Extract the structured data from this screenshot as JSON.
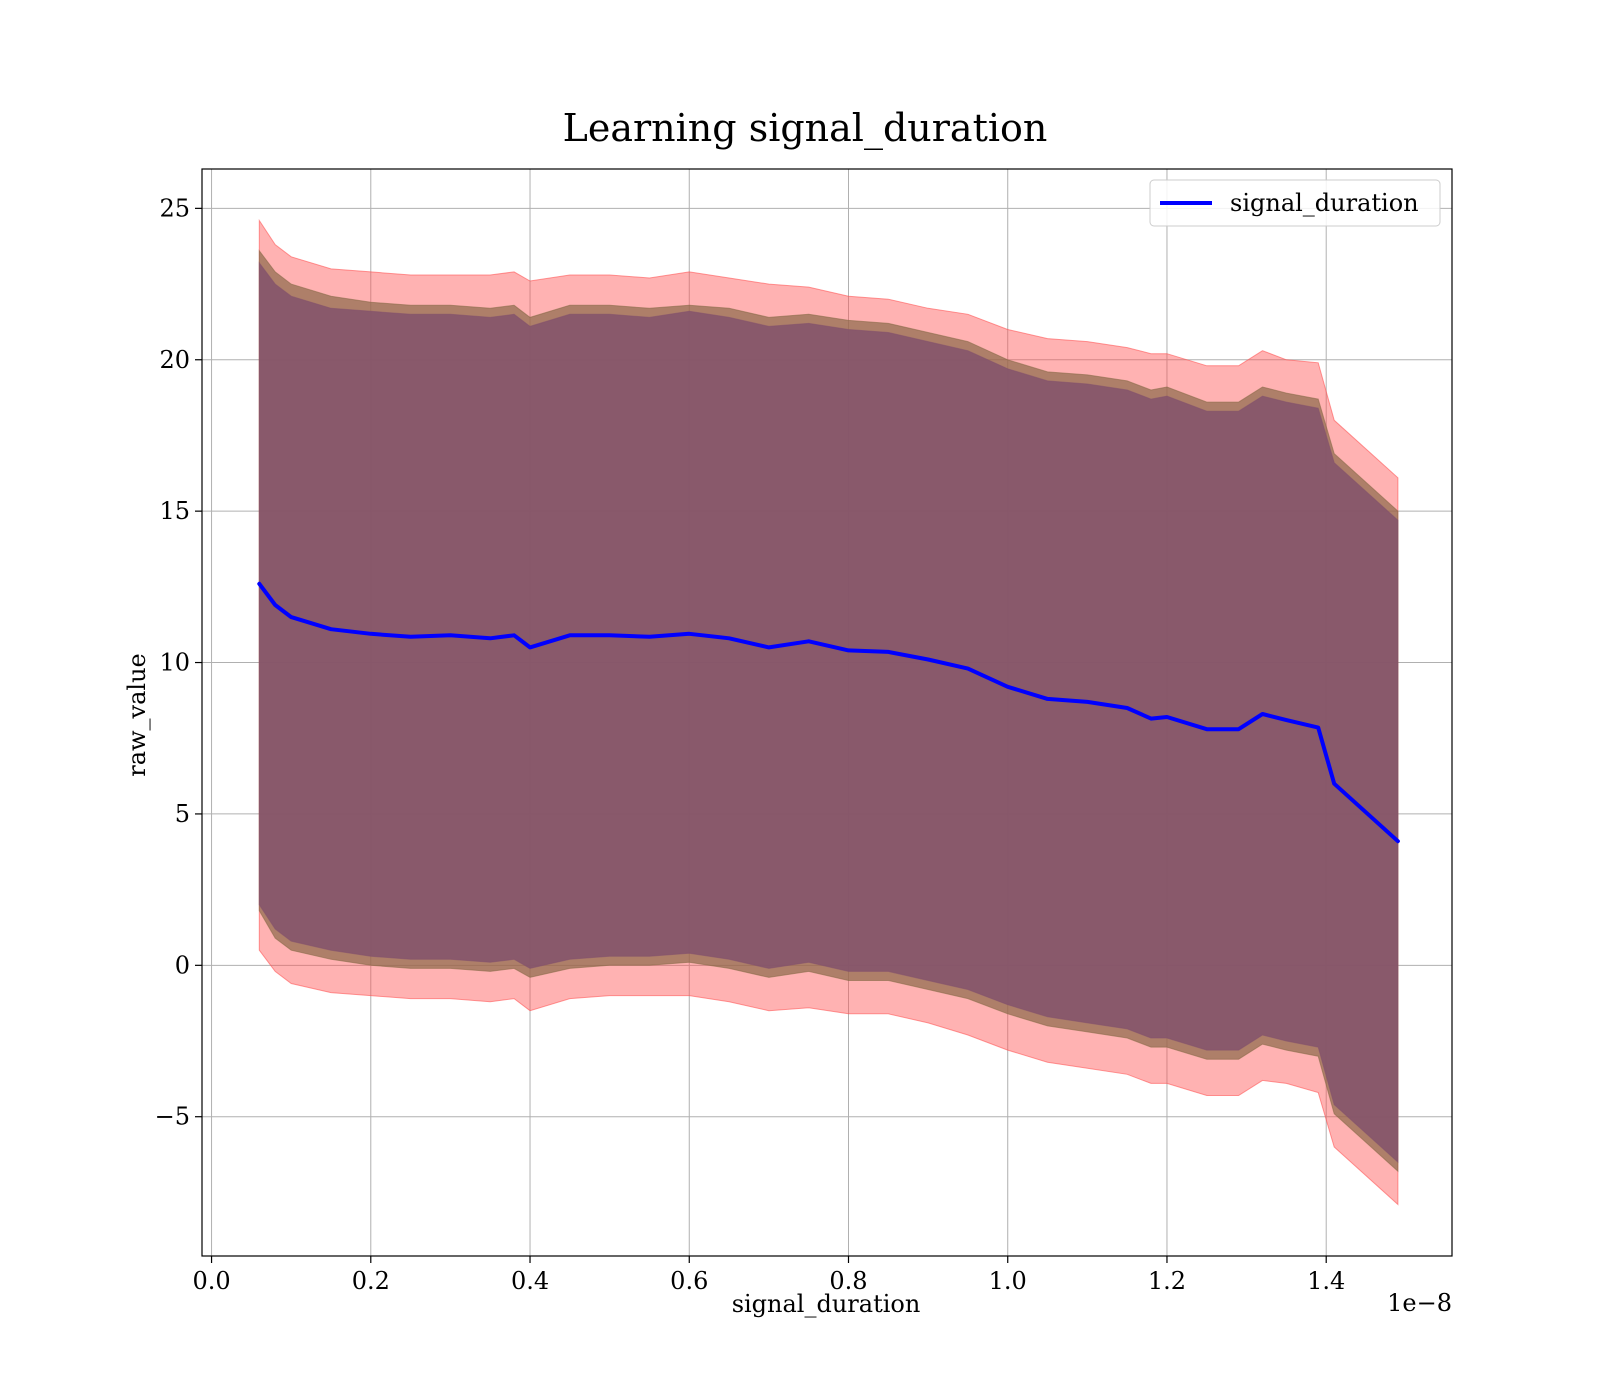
{
  "chart_data": {
    "type": "line",
    "title": "Learning signal_duration",
    "xlabel": "signal_duration",
    "ylabel": "raw_value",
    "x_offset_label": "1e−8",
    "xlim": [
      -0.012,
      1.558
    ],
    "ylim": [
      -9.6,
      26.3
    ],
    "x_ticks": [
      0.0,
      0.2,
      0.4,
      0.6,
      0.8,
      1.0,
      1.2,
      1.4
    ],
    "x_tick_labels": [
      "0.0",
      "0.2",
      "0.4",
      "0.6",
      "0.8",
      "1.0",
      "1.2",
      "1.4"
    ],
    "y_ticks": [
      -5,
      0,
      5,
      10,
      15,
      20,
      25
    ],
    "y_tick_labels": [
      "−5",
      "0",
      "5",
      "10",
      "15",
      "20",
      "25"
    ],
    "grid": true,
    "legend_position": "top-right",
    "series": [
      {
        "name": "signal_duration",
        "color": "#0000ff",
        "x": [
          0.06,
          0.08,
          0.1,
          0.15,
          0.2,
          0.25,
          0.3,
          0.35,
          0.38,
          0.4,
          0.45,
          0.5,
          0.55,
          0.6,
          0.65,
          0.7,
          0.75,
          0.8,
          0.85,
          0.9,
          0.95,
          1.0,
          1.05,
          1.1,
          1.15,
          1.18,
          1.2,
          1.25,
          1.29,
          1.32,
          1.35,
          1.39,
          1.41,
          1.49
        ],
        "y": [
          12.6,
          11.9,
          11.5,
          11.1,
          10.95,
          10.85,
          10.9,
          10.8,
          10.9,
          10.5,
          10.9,
          10.9,
          10.85,
          10.95,
          10.8,
          10.5,
          10.7,
          10.4,
          10.35,
          10.1,
          9.8,
          9.2,
          8.8,
          8.7,
          8.5,
          8.15,
          8.2,
          7.8,
          7.8,
          8.3,
          8.1,
          7.85,
          6.0,
          4.1
        ]
      }
    ],
    "bands": [
      {
        "color": "#ff5555",
        "opacity": 0.45,
        "x": [
          0.06,
          0.08,
          0.1,
          0.15,
          0.2,
          0.25,
          0.3,
          0.35,
          0.38,
          0.4,
          0.45,
          0.5,
          0.55,
          0.6,
          0.65,
          0.7,
          0.75,
          0.8,
          0.85,
          0.9,
          0.95,
          1.0,
          1.05,
          1.1,
          1.15,
          1.18,
          1.2,
          1.25,
          1.29,
          1.32,
          1.35,
          1.39,
          1.41,
          1.49
        ],
        "upper": [
          24.6,
          23.8,
          23.4,
          23.0,
          22.9,
          22.8,
          22.8,
          22.8,
          22.9,
          22.6,
          22.8,
          22.8,
          22.7,
          22.9,
          22.7,
          22.5,
          22.4,
          22.1,
          22.0,
          21.7,
          21.5,
          21.0,
          20.7,
          20.6,
          20.4,
          20.2,
          20.2,
          19.8,
          19.8,
          20.3,
          20.0,
          19.9,
          18.0,
          16.1
        ],
        "lower": [
          0.5,
          -0.2,
          -0.6,
          -0.9,
          -1.0,
          -1.1,
          -1.1,
          -1.2,
          -1.1,
          -1.5,
          -1.1,
          -1.0,
          -1.0,
          -1.0,
          -1.2,
          -1.5,
          -1.4,
          -1.6,
          -1.6,
          -1.9,
          -2.3,
          -2.8,
          -3.2,
          -3.4,
          -3.6,
          -3.9,
          -3.9,
          -4.3,
          -4.3,
          -3.8,
          -3.9,
          -4.2,
          -6.0,
          -7.9
        ]
      },
      {
        "color": "#8b6a4a",
        "opacity": 0.7,
        "x": [
          0.06,
          0.08,
          0.1,
          0.15,
          0.2,
          0.25,
          0.3,
          0.35,
          0.38,
          0.4,
          0.45,
          0.5,
          0.55,
          0.6,
          0.65,
          0.7,
          0.75,
          0.8,
          0.85,
          0.9,
          0.95,
          1.0,
          1.05,
          1.1,
          1.15,
          1.18,
          1.2,
          1.25,
          1.29,
          1.32,
          1.35,
          1.39,
          1.41,
          1.49
        ],
        "upper": [
          23.6,
          22.9,
          22.5,
          22.1,
          21.9,
          21.8,
          21.8,
          21.7,
          21.8,
          21.4,
          21.8,
          21.8,
          21.7,
          21.8,
          21.7,
          21.4,
          21.5,
          21.3,
          21.2,
          20.9,
          20.6,
          20.0,
          19.6,
          19.5,
          19.3,
          19.0,
          19.1,
          18.6,
          18.6,
          19.1,
          18.9,
          18.7,
          16.9,
          15.0
        ],
        "lower": [
          1.8,
          0.9,
          0.5,
          0.2,
          0.0,
          -0.1,
          -0.1,
          -0.2,
          -0.1,
          -0.4,
          -0.1,
          0.0,
          0.0,
          0.1,
          -0.1,
          -0.4,
          -0.2,
          -0.5,
          -0.5,
          -0.8,
          -1.1,
          -1.6,
          -2.0,
          -2.2,
          -2.4,
          -2.7,
          -2.7,
          -3.1,
          -3.1,
          -2.6,
          -2.8,
          -3.0,
          -4.9,
          -6.8
        ]
      },
      {
        "color": "#83526c",
        "opacity": 0.85,
        "x": [
          0.06,
          0.08,
          0.1,
          0.15,
          0.2,
          0.25,
          0.3,
          0.35,
          0.38,
          0.4,
          0.45,
          0.5,
          0.55,
          0.6,
          0.65,
          0.7,
          0.75,
          0.8,
          0.85,
          0.9,
          0.95,
          1.0,
          1.05,
          1.1,
          1.15,
          1.18,
          1.2,
          1.25,
          1.29,
          1.32,
          1.35,
          1.39,
          1.41,
          1.49
        ],
        "upper": [
          23.2,
          22.5,
          22.1,
          21.7,
          21.6,
          21.5,
          21.5,
          21.4,
          21.5,
          21.1,
          21.5,
          21.5,
          21.4,
          21.6,
          21.4,
          21.1,
          21.2,
          21.0,
          20.9,
          20.6,
          20.3,
          19.7,
          19.3,
          19.2,
          19.0,
          18.7,
          18.8,
          18.3,
          18.3,
          18.8,
          18.6,
          18.4,
          16.6,
          14.7
        ],
        "lower": [
          2.0,
          1.2,
          0.8,
          0.5,
          0.3,
          0.2,
          0.2,
          0.1,
          0.2,
          -0.1,
          0.2,
          0.3,
          0.3,
          0.4,
          0.2,
          -0.1,
          0.1,
          -0.2,
          -0.2,
          -0.5,
          -0.8,
          -1.3,
          -1.7,
          -1.9,
          -2.1,
          -2.4,
          -2.4,
          -2.8,
          -2.8,
          -2.3,
          -2.5,
          -2.7,
          -4.6,
          -6.5
        ]
      }
    ]
  }
}
